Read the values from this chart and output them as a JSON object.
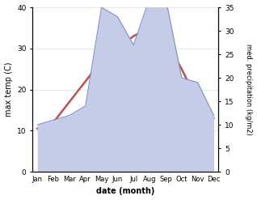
{
  "months": [
    "Jan",
    "Feb",
    "Mar",
    "Apr",
    "May",
    "Jun",
    "Jul",
    "Aug",
    "Sep",
    "Oct",
    "Nov",
    "Dec"
  ],
  "month_positions": [
    0,
    1,
    2,
    3,
    4,
    5,
    6,
    7,
    8,
    9,
    10,
    11
  ],
  "temperature": [
    10.5,
    12,
    17,
    22,
    27,
    30,
    33,
    35,
    32,
    25,
    17,
    13
  ],
  "precipitation": [
    10,
    11,
    12,
    14,
    35,
    33,
    27,
    37,
    37,
    20,
    19,
    12
  ],
  "temp_color": "#c0504d",
  "precip_fill_color": "#c5cce8",
  "precip_line_color": "#8090c8",
  "temp_ylim": [
    0,
    40
  ],
  "precip_ylim": [
    0,
    35
  ],
  "temp_yticks": [
    0,
    10,
    20,
    30,
    40
  ],
  "precip_yticks": [
    0,
    5,
    10,
    15,
    20,
    25,
    30,
    35
  ],
  "xlabel": "date (month)",
  "ylabel_left": "max temp (C)",
  "ylabel_right": "med. precipitation (kg/m2)",
  "bg_color": "#ffffff",
  "temp_linewidth": 1.8
}
